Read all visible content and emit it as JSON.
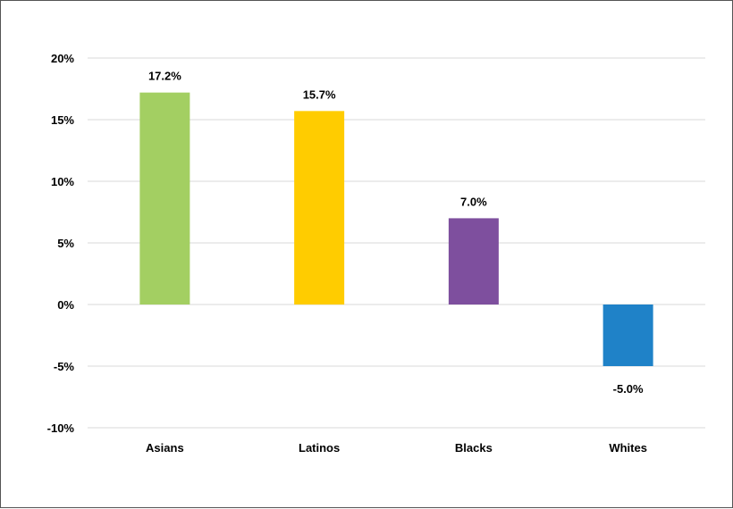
{
  "chart_data": {
    "type": "bar",
    "title": "",
    "xlabel": "",
    "ylabel": "",
    "categories": [
      "Asians",
      "Latinos",
      "Blacks",
      "Whites"
    ],
    "values": [
      17.2,
      15.7,
      7.0,
      -5.0
    ],
    "data_labels": [
      "17.2%",
      "15.7%",
      "7.0%",
      "-5.0%"
    ],
    "colors": [
      "#a3cf62",
      "#ffcc00",
      "#7e4f9e",
      "#1f82c8"
    ],
    "ylim": [
      -10,
      20
    ],
    "yticks": [
      20,
      15,
      10,
      5,
      0,
      -5,
      -10
    ],
    "ytick_labels": [
      "20%",
      "15%",
      "10%",
      "5%",
      "0%",
      "-5%",
      "-10%"
    ],
    "grid": true,
    "legend": "none"
  }
}
